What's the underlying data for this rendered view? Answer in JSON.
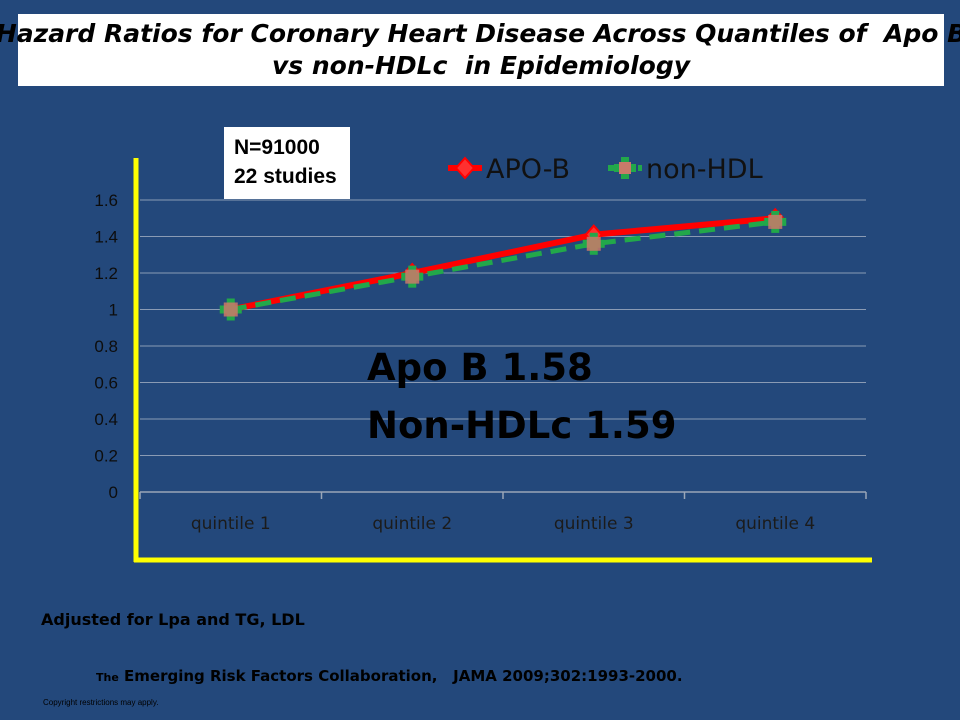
{
  "title": {
    "line1": "Hazard Ratios for Coronary Heart Disease Across Quantiles of  Apo B",
    "line2": "vs non-HDLc  in Epidemiology"
  },
  "info_box": {
    "line1": "N=91000",
    "line2": "22 studies"
  },
  "annotation": {
    "line1": "Apo B 1.58",
    "line2": "Non-HDLc  1.59"
  },
  "footer": {
    "adjusted": "Adjusted for Lpa and TG, LDL",
    "citation_prefix": "The",
    "citation": " Emerging Risk Factors Collaboration,   JAMA 2009;302:1993-2000.",
    "copyright": "Copyright restrictions may apply."
  },
  "chart_data": {
    "type": "line",
    "categories": [
      "quintile 1",
      "quintile 2",
      "quintile 3",
      "quintile 4"
    ],
    "series": [
      {
        "name": "APO-B",
        "values": [
          1.0,
          1.2,
          1.41,
          1.5
        ],
        "color": "#ff0000",
        "dash": "solid"
      },
      {
        "name": "non-HDL",
        "values": [
          1.0,
          1.18,
          1.36,
          1.48
        ],
        "color": "#22a84a",
        "dash": "dashed"
      }
    ],
    "ylim": [
      0,
      1.6
    ],
    "yticks": [
      "0",
      "0.2",
      "0.4",
      "0.6",
      "0.8",
      "1",
      "1.2",
      "1.4",
      "1.6"
    ],
    "grid": true,
    "legend_position": "top-right",
    "axis_highlight_color": "#ffff00"
  }
}
